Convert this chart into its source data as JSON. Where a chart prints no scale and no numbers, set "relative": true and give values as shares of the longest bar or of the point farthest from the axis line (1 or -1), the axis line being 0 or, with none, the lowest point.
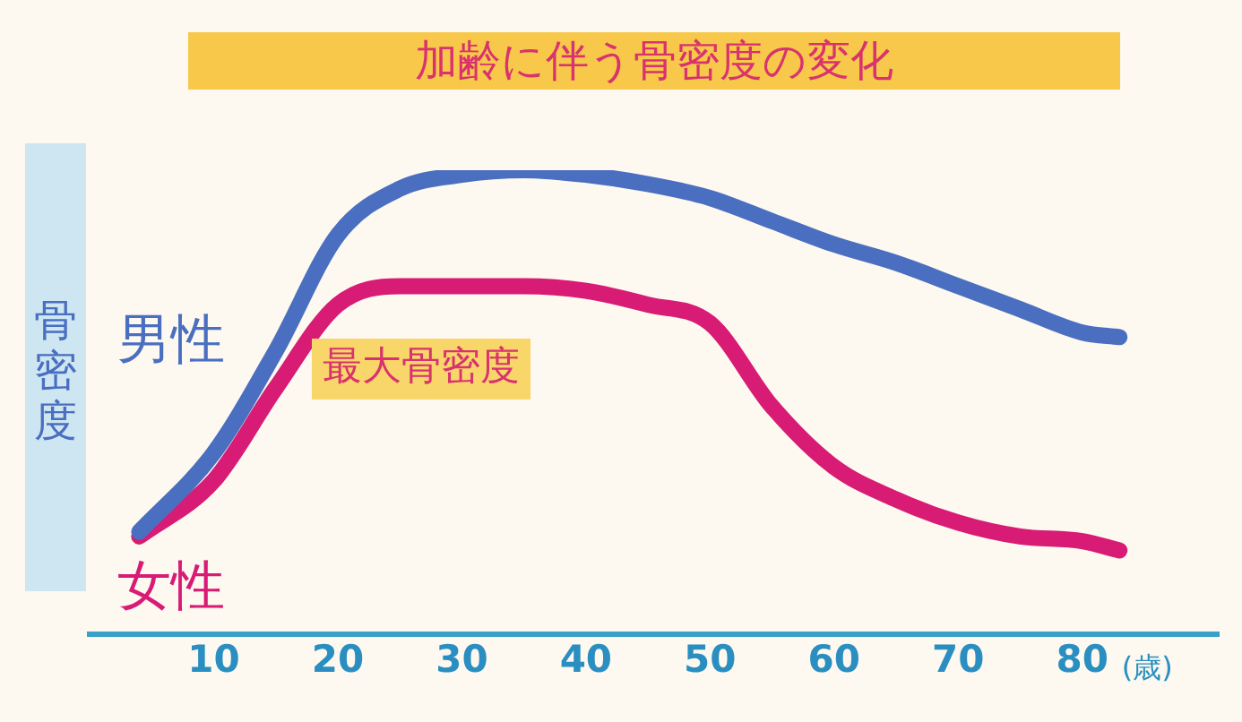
{
  "chart_data": {
    "type": "line",
    "title": "加齢に伴う骨密度の変化",
    "ylabel": "骨密度",
    "xlabel": "(歳)",
    "relative": true,
    "x": [
      4,
      10,
      15,
      20,
      25,
      30,
      35,
      40,
      45,
      50,
      55,
      60,
      65,
      70,
      75,
      80,
      83
    ],
    "xlim": [
      0,
      91
    ],
    "xticks": [
      10,
      20,
      30,
      40,
      50,
      60,
      70,
      80
    ],
    "grid": false,
    "legend": false,
    "marker": "none",
    "line_style": "solid",
    "series": [
      {
        "name": "男性",
        "color": "#4a6fc0",
        "values": [
          0.22,
          0.39,
          0.61,
          0.86,
          0.96,
          0.99,
          1,
          0.99,
          0.97,
          0.94,
          0.89,
          0.84,
          0.8,
          0.75,
          0.7,
          0.65,
          0.64
        ]
      },
      {
        "name": "女性",
        "color": "#d81b74",
        "values": [
          0.21,
          0.33,
          0.53,
          0.71,
          0.75,
          0.75,
          0.75,
          0.74,
          0.71,
          0.67,
          0.49,
          0.36,
          0.29,
          0.24,
          0.21,
          0.2,
          0.18
        ]
      }
    ],
    "annotations": [
      "最大骨密度"
    ]
  }
}
